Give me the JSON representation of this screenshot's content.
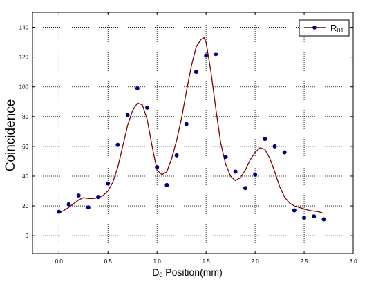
{
  "chart_data": {
    "type": "scatter",
    "xlabel_main": "D",
    "xlabel_sub": "0",
    "xlabel_rest": " Position(mm)",
    "ylabel": "Coincidence",
    "xlim": [
      -0.27,
      3.0
    ],
    "ylim": [
      -12,
      150
    ],
    "xticks": [
      "0.0",
      "0.5",
      "1.0",
      "1.5",
      "2.0",
      "2.5",
      "3.0"
    ],
    "xtick_values": [
      0,
      0.5,
      1.0,
      1.5,
      2.0,
      2.5,
      3.0
    ],
    "yticks": [
      "0",
      "20",
      "40",
      "60",
      "80",
      "100",
      "120",
      "140"
    ],
    "ytick_values": [
      0,
      20,
      40,
      60,
      80,
      100,
      120,
      140
    ],
    "grid": true,
    "legend": {
      "position": "top-right",
      "main": "R",
      "sub": "01"
    },
    "series": [
      {
        "name": "R01",
        "kind": "points",
        "color": "#00007a",
        "x": [
          0.0,
          0.1,
          0.2,
          0.3,
          0.4,
          0.5,
          0.6,
          0.7,
          0.8,
          0.9,
          1.0,
          1.1,
          1.2,
          1.3,
          1.4,
          1.5,
          1.6,
          1.7,
          1.8,
          1.9,
          2.0,
          2.1,
          2.2,
          2.3,
          2.4,
          2.5,
          2.6,
          2.7
        ],
        "y": [
          16,
          21,
          27,
          19,
          26,
          35,
          61,
          81,
          99,
          86,
          46,
          34,
          54,
          75,
          110,
          121,
          122,
          53,
          43,
          32,
          41,
          65,
          60,
          56,
          17,
          12,
          13,
          11
        ]
      },
      {
        "name": "R01",
        "kind": "line",
        "color": "#7a0000",
        "x": [
          0.0,
          0.05,
          0.1,
          0.15,
          0.2,
          0.25,
          0.3,
          0.35,
          0.4,
          0.45,
          0.5,
          0.55,
          0.6,
          0.65,
          0.7,
          0.75,
          0.8,
          0.85,
          0.9,
          0.95,
          1.0,
          1.05,
          1.1,
          1.15,
          1.2,
          1.25,
          1.3,
          1.35,
          1.4,
          1.45,
          1.48,
          1.5,
          1.55,
          1.6,
          1.65,
          1.7,
          1.75,
          1.8,
          1.85,
          1.9,
          1.95,
          2.0,
          2.05,
          2.1,
          2.15,
          2.2,
          2.25,
          2.3,
          2.35,
          2.4,
          2.45,
          2.5,
          2.55,
          2.6,
          2.65,
          2.7
        ],
        "y": [
          15,
          17,
          19,
          21.5,
          24,
          25.5,
          25,
          25,
          25.5,
          27,
          30,
          36,
          46,
          60,
          74,
          84,
          89,
          88,
          78,
          60,
          44,
          41,
          43,
          52,
          64,
          79,
          97,
          114,
          127,
          132,
          133,
          130,
          110,
          85,
          62,
          48,
          40,
          37,
          39,
          44,
          51,
          56,
          59,
          58,
          52,
          43,
          33,
          26,
          22,
          20,
          19,
          18,
          17,
          16.5,
          16,
          15
        ]
      }
    ]
  }
}
